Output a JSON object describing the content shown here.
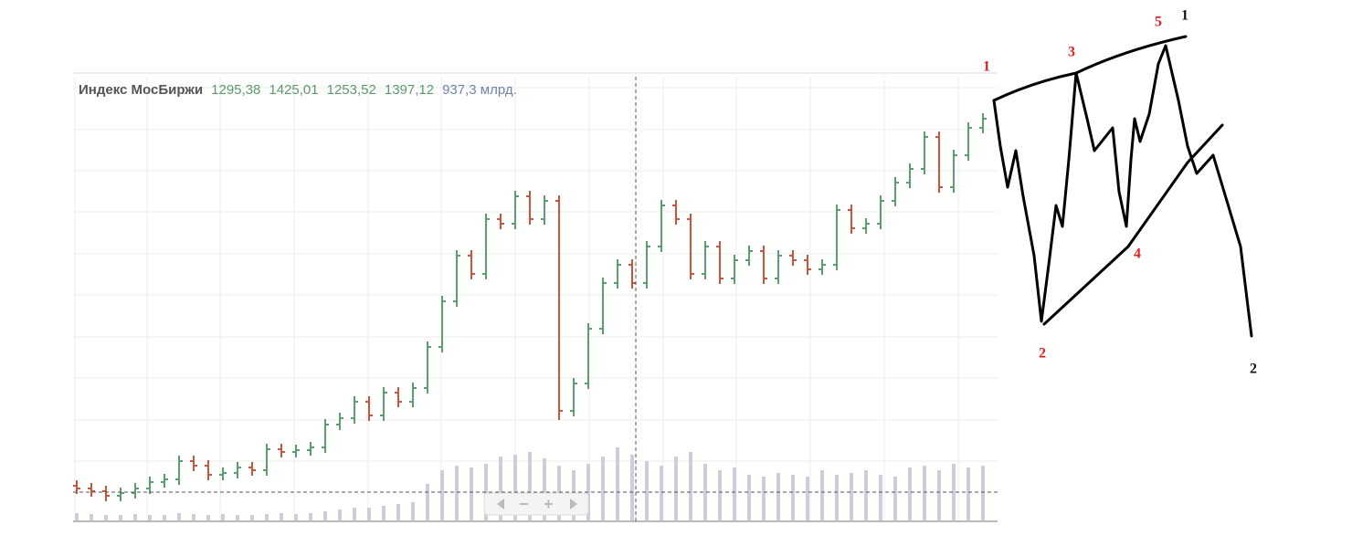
{
  "chart_data": {
    "type": "ohlc",
    "title": "Индекс МосБиржи",
    "header_values": [
      "1295,38",
      "1425,01",
      "1253,52",
      "1397,12"
    ],
    "volume_label": "937,3 млрд.",
    "up_color": "#5a9e72",
    "down_color": "#c8553d",
    "volume_color": "#c9cfdb",
    "ylim": [
      0,
      485
    ],
    "volume_lim": [
      0,
      100
    ],
    "open": [
      38,
      35,
      32,
      27,
      30,
      35,
      42,
      45,
      65,
      60,
      50,
      52,
      58,
      55,
      78,
      75,
      77,
      80,
      105,
      112,
      130,
      115,
      140,
      130,
      145,
      190,
      240,
      290,
      270,
      330,
      325,
      355,
      330,
      350,
      120,
      150,
      210,
      260,
      280,
      260,
      300,
      345,
      330,
      270,
      300,
      265,
      285,
      295,
      265,
      290,
      285,
      275,
      280,
      340,
      320,
      325,
      350,
      370,
      385,
      420,
      365,
      400,
      430
    ],
    "high": [
      44,
      41,
      38,
      36,
      41,
      48,
      51,
      71,
      71,
      66,
      58,
      64,
      64,
      84,
      84,
      83,
      86,
      111,
      118,
      136,
      136,
      146,
      146,
      151,
      196,
      246,
      296,
      296,
      336,
      336,
      361,
      361,
      356,
      356,
      156,
      216,
      266,
      286,
      286,
      306,
      351,
      351,
      336,
      306,
      306,
      291,
      301,
      301,
      296,
      296,
      291,
      286,
      346,
      346,
      331,
      356,
      376,
      391,
      426,
      426,
      406,
      436,
      446
    ],
    "low": [
      29,
      26,
      21,
      21,
      24,
      29,
      36,
      39,
      54,
      44,
      44,
      46,
      49,
      49,
      69,
      69,
      71,
      74,
      99,
      106,
      109,
      109,
      124,
      124,
      139,
      184,
      234,
      264,
      264,
      319,
      319,
      324,
      324,
      110,
      114,
      144,
      204,
      254,
      254,
      254,
      294,
      324,
      264,
      264,
      259,
      259,
      279,
      259,
      259,
      279,
      269,
      269,
      274,
      314,
      314,
      319,
      344,
      364,
      379,
      359,
      359,
      394,
      424
    ],
    "close": [
      35,
      32,
      27,
      30,
      35,
      42,
      45,
      65,
      60,
      50,
      52,
      58,
      55,
      78,
      75,
      77,
      80,
      105,
      112,
      130,
      115,
      140,
      130,
      145,
      190,
      240,
      290,
      270,
      330,
      325,
      355,
      330,
      350,
      120,
      150,
      210,
      260,
      280,
      260,
      300,
      345,
      330,
      270,
      300,
      265,
      285,
      295,
      265,
      290,
      285,
      275,
      280,
      340,
      320,
      325,
      350,
      370,
      385,
      420,
      365,
      400,
      430,
      440
    ],
    "volume": [
      8,
      7,
      6,
      6,
      7,
      6,
      6,
      8,
      7,
      6,
      7,
      6,
      6,
      7,
      8,
      7,
      8,
      10,
      12,
      14,
      14,
      16,
      18,
      20,
      40,
      55,
      60,
      58,
      62,
      70,
      72,
      75,
      68,
      60,
      55,
      62,
      70,
      80,
      72,
      65,
      60,
      70,
      75,
      62,
      55,
      58,
      50,
      48,
      52,
      50,
      48,
      55,
      50,
      52,
      55,
      50,
      48,
      58,
      60,
      55,
      62,
      58,
      60
    ],
    "annotations": [
      {
        "text": "1",
        "color": "#e02020"
      },
      {
        "text": "3",
        "color": "#e02020"
      },
      {
        "text": "5",
        "color": "#e02020"
      },
      {
        "text": "1",
        "color": "#111111"
      },
      {
        "text": "2",
        "color": "#e02020"
      },
      {
        "text": "4",
        "color": "#e02020"
      },
      {
        "text": "2",
        "color": "#111111"
      }
    ]
  }
}
